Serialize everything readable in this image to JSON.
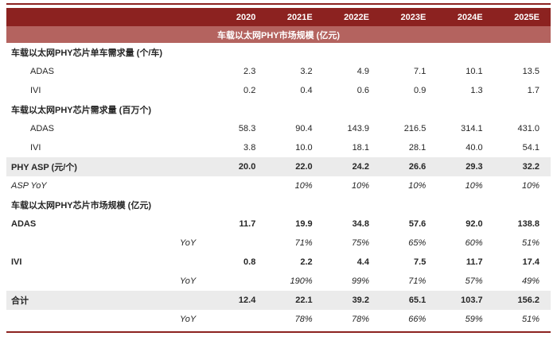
{
  "colors": {
    "header_bg": "#8c2220",
    "band_bg": "#b4635f",
    "alt_row_bg": "#ebebeb",
    "rule_color": "#8c2220"
  },
  "band_title": "车载以太网PHY市场规模 (亿元)",
  "header": {
    "columns": [
      "2020",
      "2021E",
      "2022E",
      "2023E",
      "2024E",
      "2025E"
    ]
  },
  "rows": [
    {
      "label": "车载以太网PHY芯片单车需求量 (个/车)",
      "style": "section",
      "values": [
        "",
        "",
        "",
        "",
        "",
        ""
      ]
    },
    {
      "label": "ADAS",
      "style": "indent",
      "values": [
        "2.3",
        "3.2",
        "4.9",
        "7.1",
        "10.1",
        "13.5"
      ]
    },
    {
      "label": "IVI",
      "style": "indent",
      "values": [
        "0.2",
        "0.4",
        "0.6",
        "0.9",
        "1.3",
        "1.7"
      ]
    },
    {
      "label": "车载以太网PHY芯片需求量 (百万个)",
      "style": "section",
      "values": [
        "",
        "",
        "",
        "",
        "",
        ""
      ]
    },
    {
      "label": "ADAS",
      "style": "indent",
      "values": [
        "58.3",
        "90.4",
        "143.9",
        "216.5",
        "314.1",
        "431.0"
      ]
    },
    {
      "label": "IVI",
      "style": "indent",
      "values": [
        "3.8",
        "10.0",
        "18.1",
        "28.1",
        "40.0",
        "54.1"
      ]
    },
    {
      "label": "PHY ASP (元/个)",
      "style": "bold-gray",
      "values": [
        "20.0",
        "22.0",
        "24.2",
        "26.6",
        "29.3",
        "32.2"
      ]
    },
    {
      "label": "ASP YoY",
      "style": "italic",
      "values": [
        "",
        "10%",
        "10%",
        "10%",
        "10%",
        "10%"
      ]
    },
    {
      "label": "车载以太网PHY芯片市场规模 (亿元)",
      "style": "section",
      "values": [
        "",
        "",
        "",
        "",
        "",
        ""
      ]
    },
    {
      "label": "ADAS",
      "style": "bold",
      "values": [
        "11.7",
        "19.9",
        "34.8",
        "57.6",
        "92.0",
        "138.8"
      ]
    },
    {
      "label": "YoY",
      "style": "yoy",
      "values": [
        "",
        "71%",
        "75%",
        "65%",
        "60%",
        "51%"
      ]
    },
    {
      "label": "IVI",
      "style": "bold",
      "values": [
        "0.8",
        "2.2",
        "4.4",
        "7.5",
        "11.7",
        "17.4"
      ]
    },
    {
      "label": "YoY",
      "style": "yoy",
      "values": [
        "",
        "190%",
        "99%",
        "71%",
        "57%",
        "49%"
      ]
    },
    {
      "label": "合计",
      "style": "bold-gray",
      "values": [
        "12.4",
        "22.1",
        "39.2",
        "65.1",
        "103.7",
        "156.2"
      ]
    },
    {
      "label": "YoY",
      "style": "yoy",
      "values": [
        "",
        "78%",
        "78%",
        "66%",
        "59%",
        "51%"
      ]
    }
  ]
}
